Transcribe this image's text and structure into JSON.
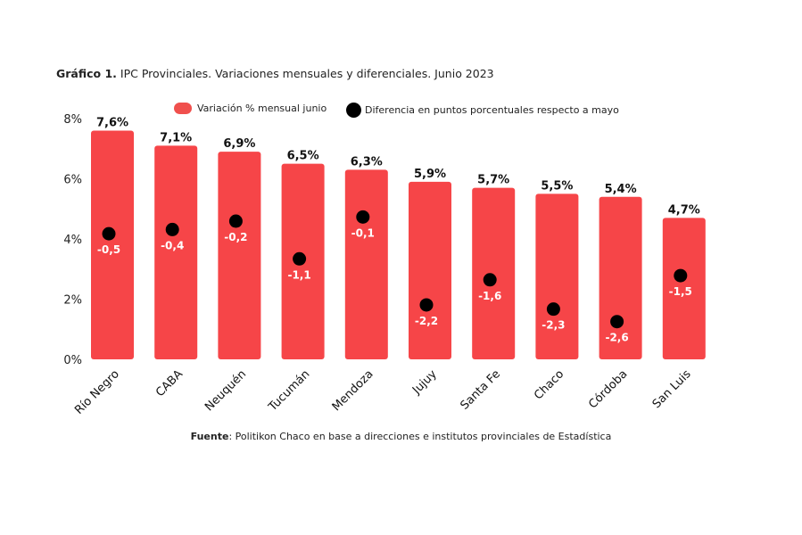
{
  "title_bold": "Gráfico 1.",
  "title_rest": " IPC Provinciales. Variaciones mensuales y diferenciales. Junio 2023",
  "source_bold": "Fuente",
  "source_rest": ": Politikon Chaco en base a direcciones e institutos provinciales de Estadística",
  "chart_data": {
    "type": "bar",
    "categories": [
      "Río Negro",
      "CABA",
      "Neuquén",
      "Tucumán",
      "Mendoza",
      "Jujuy",
      "Santa Fe",
      "Chaco",
      "Córdoba",
      "San Luis"
    ],
    "series": [
      {
        "name": "Variación % mensual junio",
        "type": "bar",
        "color": "#f64548",
        "values": [
          7.6,
          7.1,
          6.9,
          6.5,
          6.3,
          5.9,
          5.7,
          5.5,
          5.4,
          4.7
        ],
        "labels": [
          "7,6%",
          "7,1%",
          "6,9%",
          "6,5%",
          "6,3%",
          "5,9%",
          "5,7%",
          "5,5%",
          "5,4%",
          "4,7%"
        ]
      },
      {
        "name": "Diferencia en puntos porcentuales respecto a mayo",
        "type": "scatter",
        "color": "#000000",
        "values": [
          -0.5,
          -0.4,
          -0.2,
          -1.1,
          -0.1,
          -2.2,
          -1.6,
          -2.3,
          -2.6,
          -1.5
        ],
        "labels": [
          "-0,5",
          "-0,4",
          "-0,2",
          "-1,1",
          "-0,1",
          "-2,2",
          "-1,6",
          "-2,3",
          "-2,6",
          "-1,5"
        ]
      }
    ],
    "ylim": [
      0,
      8
    ],
    "yticks": [
      "0%",
      "2%",
      "4%",
      "6%",
      "8%"
    ],
    "y2lim": [
      -3.5,
      2.25
    ],
    "grid": false,
    "legend": "top"
  }
}
